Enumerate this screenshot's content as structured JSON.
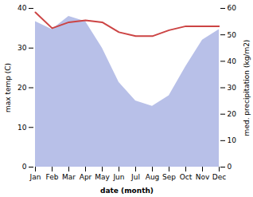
{
  "chart_data": {
    "type": "line",
    "xlabel": "date (month)",
    "ylabel": "max temp (C)",
    "y2label": "med. precipitation (kg/m2)",
    "categories": [
      "Jan",
      "Feb",
      "Mar",
      "Apr",
      "May",
      "Jun",
      "Jul",
      "Aug",
      "Sep",
      "Oct",
      "Nov",
      "Dec"
    ],
    "series": [
      {
        "type": "area",
        "axis": "y2",
        "color": "#b8c0e8",
        "values": [
          55,
          52,
          57,
          55,
          45,
          32,
          25,
          23,
          27,
          38,
          48,
          52
        ]
      },
      {
        "type": "line",
        "color": "#cc4444",
        "values": [
          39.0,
          35.0,
          36.5,
          37.0,
          36.5,
          34.0,
          33.0,
          33.0,
          34.5,
          35.5,
          35.5,
          35.5
        ]
      }
    ],
    "ylim": [
      0,
      40
    ],
    "yticks": [
      0,
      10,
      20,
      30,
      40
    ],
    "y2lim": [
      0,
      60
    ],
    "y2ticks": [
      0,
      10,
      20,
      30,
      40,
      50,
      60
    ],
    "grid": false
  }
}
